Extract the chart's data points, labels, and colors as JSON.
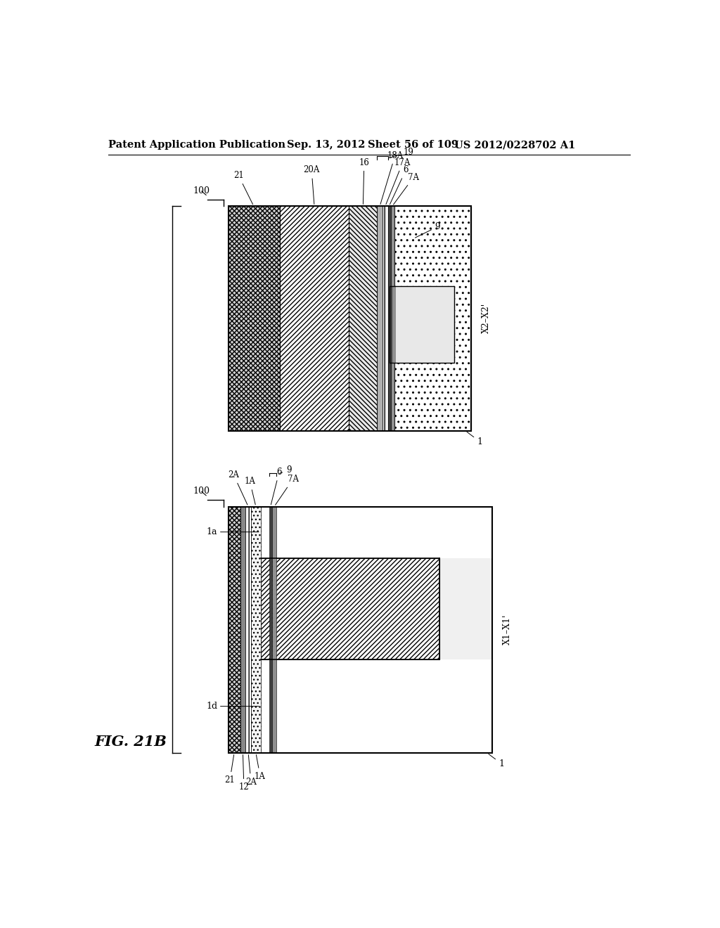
{
  "bg_color": "#ffffff",
  "header_text": "Patent Application Publication",
  "header_date": "Sep. 13, 2012",
  "header_sheet": "Sheet 56 of 109",
  "header_patent": "US 2012/0228702 A1",
  "fig_label": "FIG. 21B"
}
